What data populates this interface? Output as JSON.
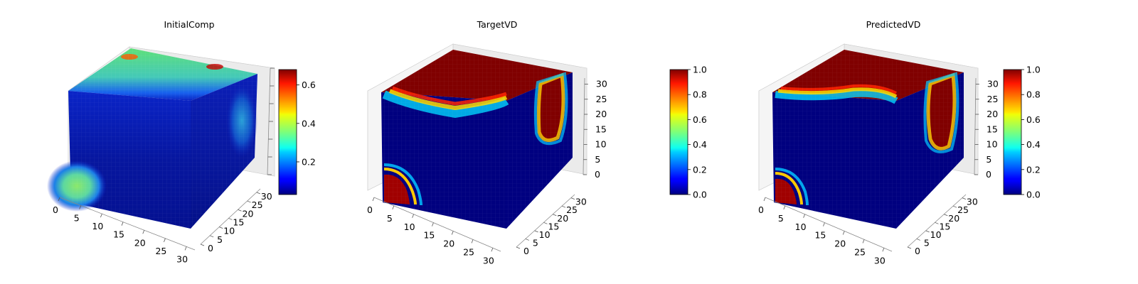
{
  "chart_data": [
    {
      "type": "heatmap",
      "subtype": "3d-voxel-cube",
      "title": "InitialComp",
      "colormap": "jet",
      "x_ticks": [
        "0",
        "5",
        "10",
        "15",
        "20",
        "25",
        "30"
      ],
      "y_ticks": [
        "0",
        "5",
        "10",
        "15",
        "20",
        "25",
        "30"
      ],
      "z_ticks": [],
      "xlim": [
        0,
        32
      ],
      "ylim": [
        0,
        32
      ],
      "zlim": [
        0,
        32
      ],
      "colorbar": {
        "min": 0.03,
        "max": 0.68,
        "ticks": [
          "0.2",
          "0.4",
          "0.6"
        ],
        "tick_values": [
          0.2,
          0.4,
          0.6
        ]
      },
      "grid": true
    },
    {
      "type": "heatmap",
      "subtype": "3d-voxel-cube",
      "title": "TargetVD",
      "colormap": "jet",
      "x_ticks": [
        "0",
        "5",
        "10",
        "15",
        "20",
        "25",
        "30"
      ],
      "y_ticks": [
        "0",
        "5",
        "10",
        "15",
        "20",
        "25",
        "30"
      ],
      "z_ticks": [
        "0",
        "5",
        "10",
        "15",
        "20",
        "25",
        "30"
      ],
      "xlim": [
        0,
        32
      ],
      "ylim": [
        0,
        32
      ],
      "zlim": [
        0,
        32
      ],
      "colorbar": {
        "min": 0.0,
        "max": 1.0,
        "ticks": [
          "0.0",
          "0.2",
          "0.4",
          "0.6",
          "0.8",
          "1.0"
        ],
        "tick_values": [
          0,
          0.2,
          0.4,
          0.6,
          0.8,
          1.0
        ]
      },
      "grid": true
    },
    {
      "type": "heatmap",
      "subtype": "3d-voxel-cube",
      "title": "PredictedVD",
      "colormap": "jet",
      "x_ticks": [
        "0",
        "5",
        "10",
        "15",
        "20",
        "25",
        "30"
      ],
      "y_ticks": [
        "0",
        "5",
        "10",
        "15",
        "20",
        "25",
        "30"
      ],
      "z_ticks": [
        "0",
        "5",
        "10",
        "15",
        "20",
        "25",
        "30"
      ],
      "xlim": [
        0,
        32
      ],
      "ylim": [
        0,
        32
      ],
      "zlim": [
        0,
        32
      ],
      "colorbar": {
        "min": 0.0,
        "max": 1.0,
        "ticks": [
          "0.0",
          "0.2",
          "0.4",
          "0.6",
          "0.8",
          "1.0"
        ],
        "tick_values": [
          0,
          0.2,
          0.4,
          0.6,
          0.8,
          1.0
        ]
      },
      "grid": true
    }
  ]
}
